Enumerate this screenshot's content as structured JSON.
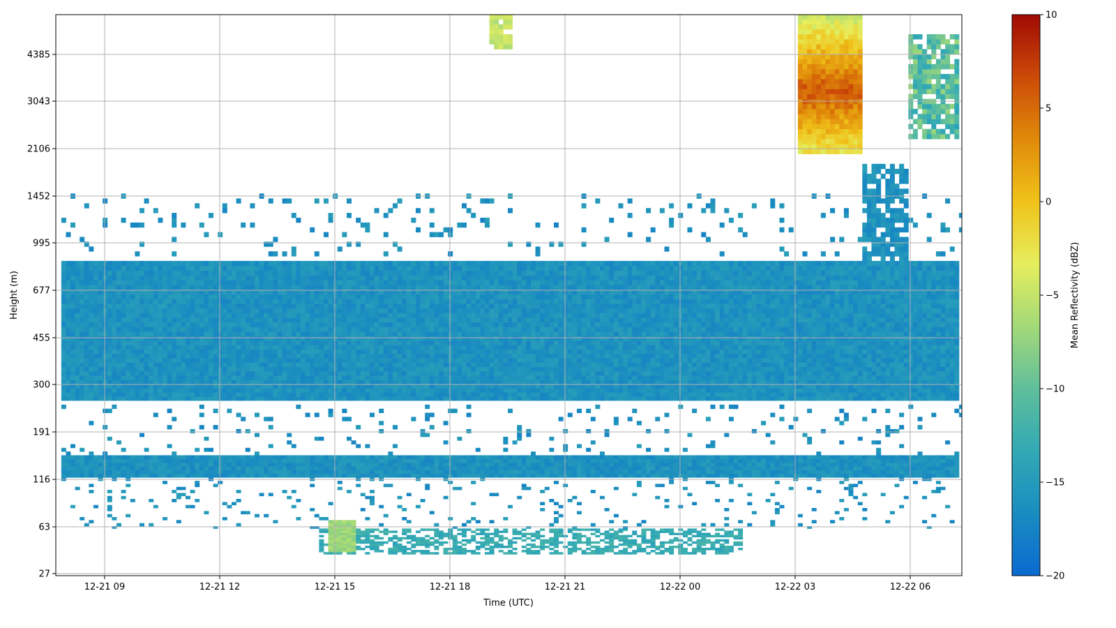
{
  "chart_data": {
    "type": "heatmap",
    "title": "",
    "xlabel": "Time (UTC)",
    "ylabel": "Height (m)",
    "x_ticks": [
      "12-21 09",
      "12-21 12",
      "12-21 15",
      "12-21 18",
      "12-21 21",
      "12-22 00",
      "12-22 03",
      "12-22 06"
    ],
    "x_range_hours": [
      7.75,
      31.4
    ],
    "x_tick_hours": [
      9,
      12,
      15,
      18,
      21,
      24,
      27,
      30
    ],
    "y_scale": "log",
    "y_ticks": [
      27,
      63,
      116,
      191,
      300,
      455,
      677,
      995,
      1452,
      2106,
      3043,
      4385
    ],
    "y_tick_labels": [
      "27",
      "63",
      "116",
      "191",
      "300",
      "455",
      "677",
      "995",
      "1452",
      "2106",
      "3043",
      "4385"
    ],
    "y_range": [
      26,
      6000
    ],
    "grid": true,
    "colorbar": {
      "label": "Mean Reflectivity (dBZ)",
      "min": -20,
      "max": 10,
      "ticks": [
        -20,
        -15,
        -10,
        -5,
        0,
        5,
        10
      ],
      "tick_labels": [
        "−20",
        "−15",
        "−10",
        "−5",
        "0",
        "5",
        "10"
      ],
      "colormap": [
        "#0a6ad0",
        "#1a8cc0",
        "#32a9b5",
        "#60bf9b",
        "#a3d978",
        "#e6ee5e",
        "#f0c21a",
        "#e08a0a",
        "#cc4a08",
        "#a00a04"
      ]
    },
    "features": [
      {
        "name": "boundary-layer echo band",
        "t_start": 7.85,
        "t_end": 31.3,
        "h_bottom": 255,
        "h_top": 860,
        "dbz": -16
      },
      {
        "name": "near-surface echo band",
        "t_start": 7.85,
        "t_end": 31.3,
        "h_bottom": 118,
        "h_top": 150,
        "dbz": -16
      },
      {
        "name": "surface clutter",
        "t_start": 14.6,
        "t_end": 25.6,
        "h_bottom": 38,
        "h_top": 62,
        "dbz": -13
      },
      {
        "name": "surface maximum",
        "t_start": 14.8,
        "t_end": 15.6,
        "h_bottom": 40,
        "h_top": 70,
        "dbz": -7
      },
      {
        "name": "upper cloud 1",
        "t_start": 19.0,
        "t_end": 19.6,
        "h_bottom": 4600,
        "h_top": 5900,
        "dbz": -5
      },
      {
        "name": "upper cloud 2",
        "t_start": 27.1,
        "t_end": 28.7,
        "h_bottom": 2000,
        "h_top": 5900,
        "dbz": 5
      },
      {
        "name": "upper cloud 3",
        "t_start": 30.0,
        "t_end": 31.3,
        "h_bottom": 2300,
        "h_top": 5200,
        "dbz": -10
      },
      {
        "name": "mid-level column",
        "t_start": 28.8,
        "t_end": 29.9,
        "h_bottom": 760,
        "h_top": 1850,
        "dbz": -16
      }
    ]
  }
}
